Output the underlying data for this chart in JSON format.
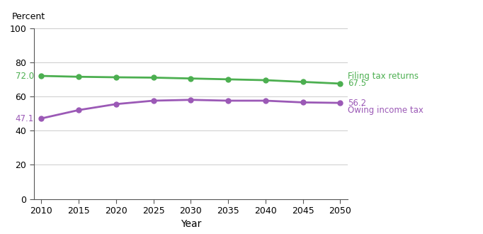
{
  "years": [
    2010,
    2015,
    2020,
    2025,
    2030,
    2035,
    2040,
    2045,
    2050
  ],
  "filing_tax_returns": [
    72.0,
    71.5,
    71.2,
    71.0,
    70.5,
    70.0,
    69.5,
    68.5,
    67.5
  ],
  "owing_income_tax": [
    47.1,
    52.0,
    55.5,
    57.5,
    58.0,
    57.5,
    57.5,
    56.5,
    56.2
  ],
  "filing_color": "#4CAF50",
  "owing_color": "#9B59B6",
  "ylabel": "Percent",
  "xlabel": "Year",
  "ylim": [
    0,
    100
  ],
  "yticks": [
    0,
    20,
    40,
    60,
    80,
    100
  ],
  "filing_label": "Filing tax returns",
  "owing_label": "Owing income tax",
  "filing_start_label": "72.0",
  "filing_end_label": "67.5",
  "owing_start_label": "47.1",
  "owing_end_label": "56.2"
}
